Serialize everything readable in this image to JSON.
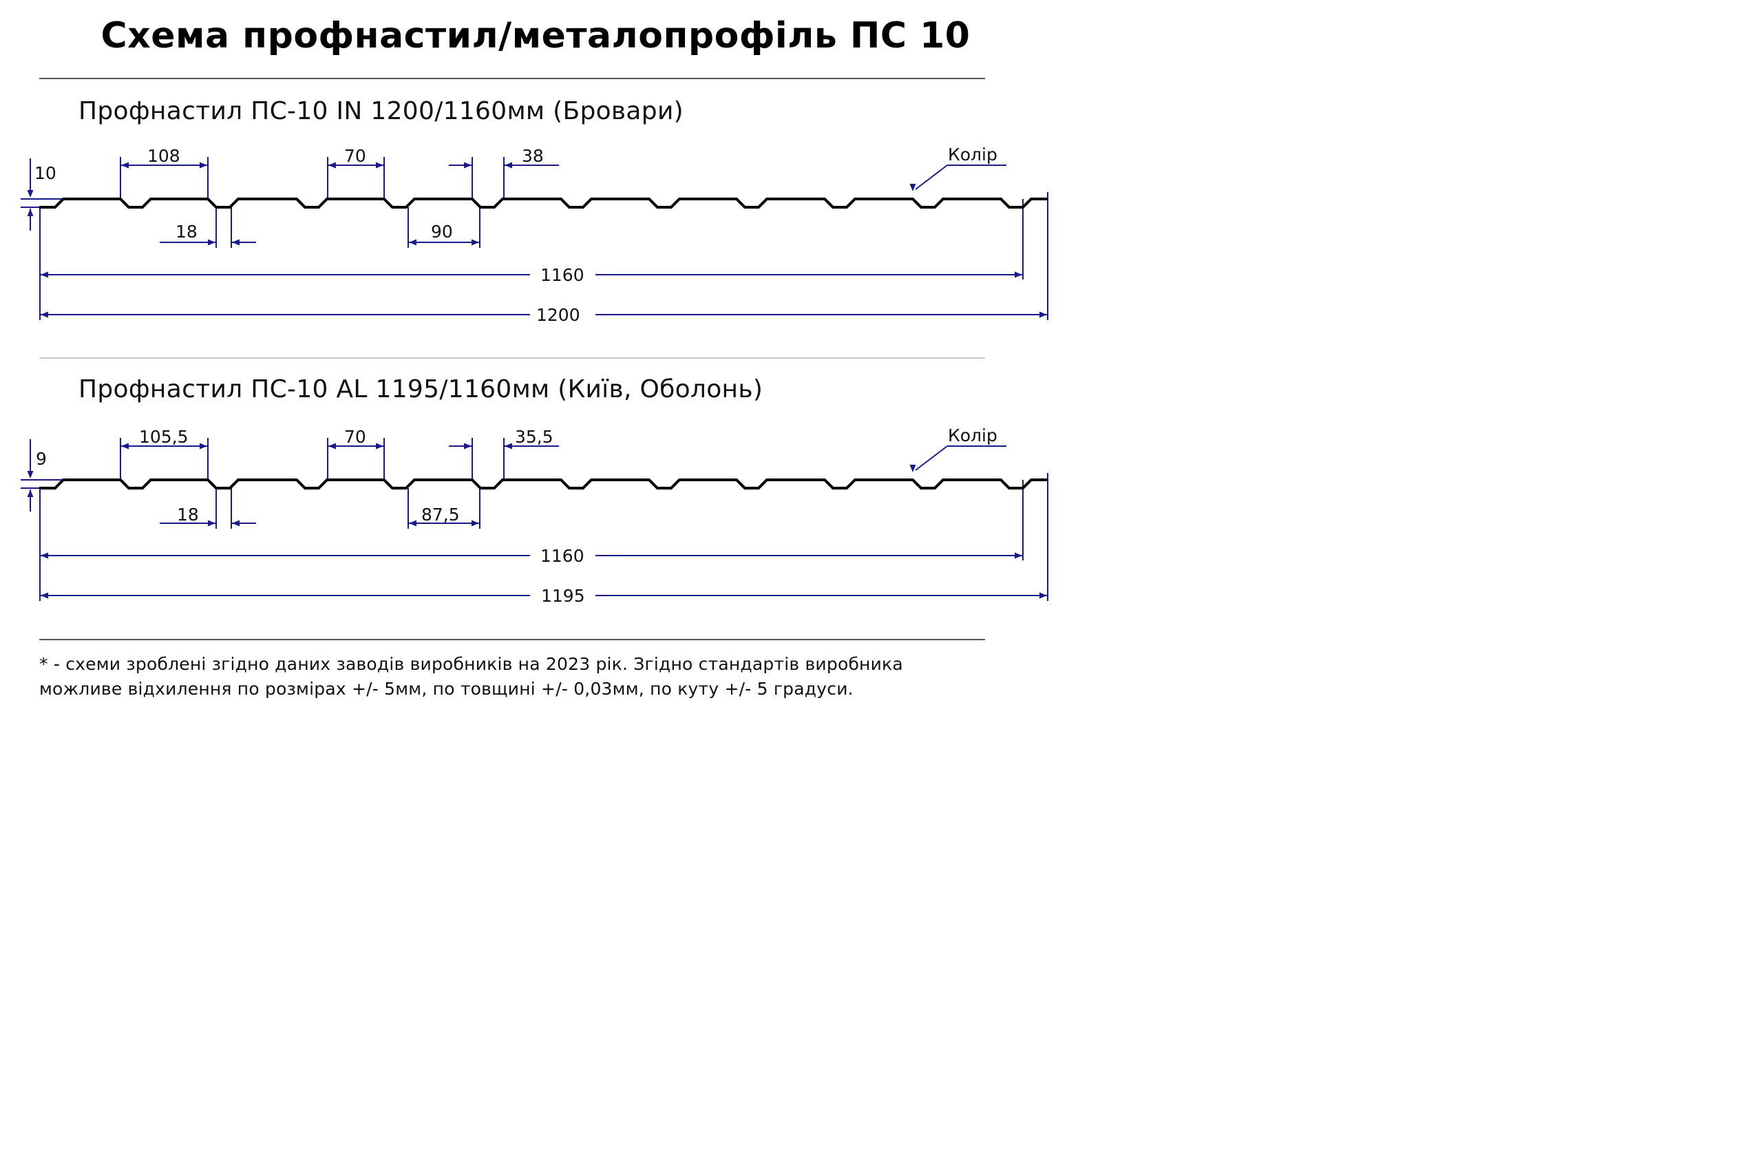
{
  "title": "Схема профнастил/металопрофіль ПС 10",
  "colors": {
    "dimension": "#1a1a8c",
    "profile": "#000000",
    "rule_dark": "#555555",
    "rule_light": "#c8c8c8"
  },
  "sections": [
    {
      "title": "Профнастил ПС-10 IN 1200/1160мм (Бровари)",
      "height_label": "10",
      "dims": {
        "top_flat": "108",
        "rib_top": "70",
        "gap_small": "38",
        "rib_bottom": "18",
        "valley": "90",
        "useful_width": "1160",
        "total_width": "1200"
      },
      "color_label": "Колір"
    },
    {
      "title": "Профнастил ПС-10 AL 1195/1160мм (Київ, Оболонь)",
      "height_label": "9",
      "dims": {
        "top_flat": "105,5",
        "rib_top": "70",
        "gap_small": "35,5",
        "rib_bottom": "18",
        "valley": "87,5",
        "useful_width": "1160",
        "total_width": "1195"
      },
      "color_label": "Колір"
    }
  ],
  "footnote": {
    "line1": "* - схеми зроблені згідно даних заводів виробників на 2023 рік. Згідно стандартів виробника",
    "line2": "можливе відхилення по розмірах +/- 5мм, по товщині +/- 0,03мм, по куту +/- 5 градуси."
  }
}
